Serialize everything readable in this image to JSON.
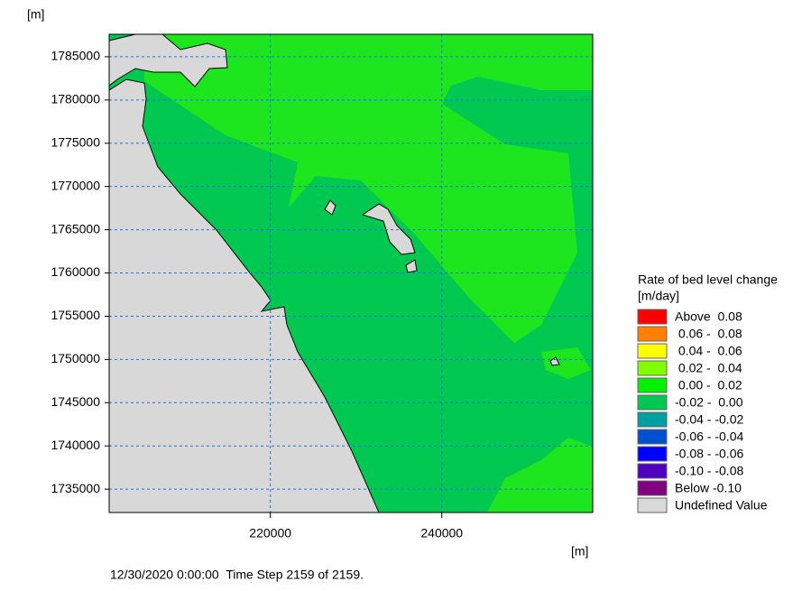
{
  "map": {
    "type": "contour-map",
    "y_unit_label": "[m]",
    "x_unit_label": "[m]",
    "xlim": [
      201200,
      257600
    ],
    "ylim": [
      1732300,
      1787600
    ],
    "xticks": [
      220000,
      240000
    ],
    "yticks": [
      1735000,
      1740000,
      1745000,
      1750000,
      1755000,
      1760000,
      1765000,
      1770000,
      1775000,
      1780000,
      1785000
    ],
    "grid": true,
    "legend": {
      "title": "Rate of bed level change",
      "unit": "[m/day]",
      "items": [
        {
          "label": "Above  0.08",
          "color": "#ff0000"
        },
        {
          "label": " 0.06 -  0.08",
          "color": "#ff8000"
        },
        {
          "label": " 0.04 -  0.06",
          "color": "#ffff00"
        },
        {
          "label": " 0.02 -  0.04",
          "color": "#80ff00"
        },
        {
          "label": " 0.00 -  0.02",
          "color": "#00f000"
        },
        {
          "label": "-0.02 -  0.00",
          "color": "#00c850"
        },
        {
          "label": "-0.04 - -0.02",
          "color": "#00a0a0"
        },
        {
          "label": "-0.06 - -0.04",
          "color": "#0050d0"
        },
        {
          "label": "-0.08 - -0.06",
          "color": "#0000ff"
        },
        {
          "label": "-0.10 - -0.08",
          "color": "#5000c0"
        },
        {
          "label": "Below -0.10",
          "color": "#800080"
        },
        {
          "label": "Undefined Value",
          "color": "#d8d8d8"
        }
      ]
    },
    "status": "12/30/2020 0:00:00  Time Step 2159 of 2159."
  }
}
